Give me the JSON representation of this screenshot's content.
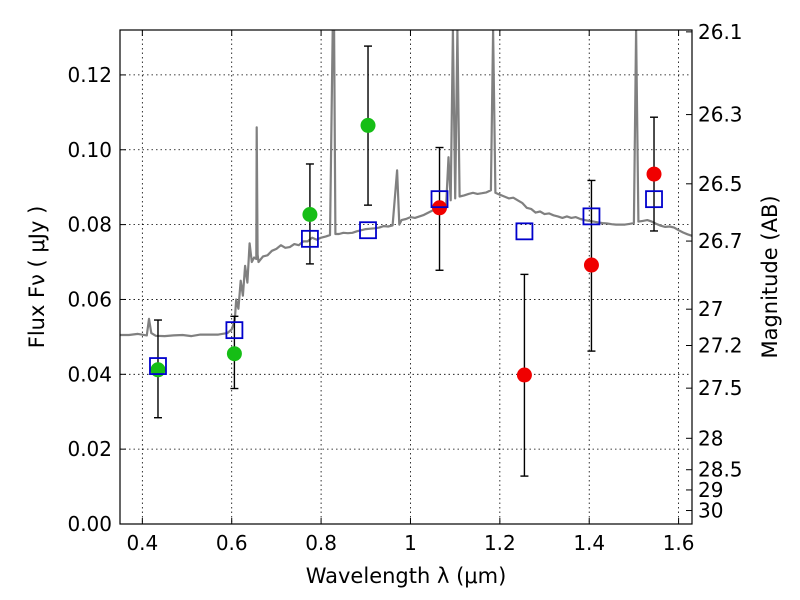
{
  "chart_data": {
    "type": "scatter",
    "xlabel": "Wavelength  λ (μm)",
    "ylabel_left": "Flux  Fν  ( μJy )",
    "ylabel_right": "Magnitude (AB)",
    "xlim": [
      0.35,
      1.63
    ],
    "ylim": [
      0.0,
      0.132
    ],
    "grid": true,
    "x_ticks": [
      0.4,
      0.6,
      0.8,
      1.0,
      1.2,
      1.4,
      1.6
    ],
    "x_tick_labels": [
      "0.4",
      "0.6",
      "0.8",
      "1",
      "1.2",
      "1.4",
      "1.6"
    ],
    "y_ticks": [
      0.0,
      0.02,
      0.04,
      0.06,
      0.08,
      0.1,
      0.12
    ],
    "y_tick_labels": [
      "0.00",
      "0.02",
      "0.04",
      "0.06",
      "0.08",
      "0.10",
      "0.12"
    ],
    "right_ticks": [
      {
        "label": "26.1",
        "flux": 0.1315
      },
      {
        "label": "26.3",
        "flux": 0.1094
      },
      {
        "label": "26.5",
        "flux": 0.0909
      },
      {
        "label": "26.7",
        "flux": 0.0756
      },
      {
        "label": "27",
        "flux": 0.0574
      },
      {
        "label": "27.2",
        "flux": 0.0477
      },
      {
        "label": "27.5",
        "flux": 0.0363
      },
      {
        "label": "28",
        "flux": 0.0229
      },
      {
        "label": "28.5",
        "flux": 0.0145
      },
      {
        "label": "29",
        "flux": 0.0091
      },
      {
        "label": "30",
        "flux": 0.0036
      }
    ],
    "series": [
      {
        "marker": "circle",
        "color": "#16be16",
        "points": [
          {
            "x": 0.435,
            "y": 0.0412,
            "err_low": 0.0284,
            "err_high": 0.0545
          },
          {
            "x": 0.606,
            "y": 0.0455,
            "err_low": 0.0362,
            "err_high": 0.0555
          },
          {
            "x": 0.775,
            "y": 0.0827,
            "err_low": 0.0695,
            "err_high": 0.0962
          },
          {
            "x": 0.905,
            "y": 0.1065,
            "err_low": 0.0852,
            "err_high": 0.1277
          }
        ]
      },
      {
        "marker": "circle",
        "color": "#f00000",
        "points": [
          {
            "x": 1.065,
            "y": 0.0845,
            "err_low": 0.0678,
            "err_high": 0.1006
          },
          {
            "x": 1.255,
            "y": 0.0398,
            "err_low": 0.0128,
            "err_high": 0.0667
          },
          {
            "x": 1.405,
            "y": 0.0692,
            "err_low": 0.0462,
            "err_high": 0.0918
          },
          {
            "x": 1.545,
            "y": 0.0935,
            "err_low": 0.0783,
            "err_high": 0.1087
          }
        ]
      },
      {
        "marker": "open-square",
        "color": "#0000cc",
        "points": [
          {
            "x": 0.435,
            "y": 0.0422
          },
          {
            "x": 0.606,
            "y": 0.0518
          },
          {
            "x": 0.775,
            "y": 0.0762
          },
          {
            "x": 0.905,
            "y": 0.0785
          },
          {
            "x": 1.065,
            "y": 0.0868
          },
          {
            "x": 1.255,
            "y": 0.0782
          },
          {
            "x": 1.405,
            "y": 0.0822
          },
          {
            "x": 1.545,
            "y": 0.0868
          }
        ]
      }
    ],
    "spectrum": {
      "color": "#808080",
      "points": [
        [
          0.35,
          0.0505
        ],
        [
          0.37,
          0.0505
        ],
        [
          0.39,
          0.0508
        ],
        [
          0.41,
          0.0504
        ],
        [
          0.415,
          0.0548
        ],
        [
          0.42,
          0.051
        ],
        [
          0.43,
          0.0503
        ],
        [
          0.45,
          0.0502
        ],
        [
          0.47,
          0.0504
        ],
        [
          0.49,
          0.0505
        ],
        [
          0.51,
          0.0502
        ],
        [
          0.53,
          0.0506
        ],
        [
          0.55,
          0.0506
        ],
        [
          0.57,
          0.0506
        ],
        [
          0.59,
          0.051
        ],
        [
          0.6,
          0.052
        ],
        [
          0.607,
          0.0545
        ],
        [
          0.61,
          0.06
        ],
        [
          0.615,
          0.0575
        ],
        [
          0.62,
          0.065
        ],
        [
          0.625,
          0.061
        ],
        [
          0.63,
          0.069
        ],
        [
          0.635,
          0.0645
        ],
        [
          0.64,
          0.075
        ],
        [
          0.645,
          0.07
        ],
        [
          0.65,
          0.0712
        ],
        [
          0.655,
          0.0708
        ],
        [
          0.656,
          0.106
        ],
        [
          0.658,
          0.072
        ],
        [
          0.66,
          0.07
        ],
        [
          0.67,
          0.0715
        ],
        [
          0.68,
          0.0718
        ],
        [
          0.69,
          0.073
        ],
        [
          0.7,
          0.0735
        ],
        [
          0.71,
          0.0745
        ],
        [
          0.72,
          0.0738
        ],
        [
          0.73,
          0.074
        ],
        [
          0.74,
          0.0748
        ],
        [
          0.75,
          0.0745
        ],
        [
          0.76,
          0.0755
        ],
        [
          0.77,
          0.0755
        ],
        [
          0.78,
          0.0765
        ],
        [
          0.79,
          0.076
        ],
        [
          0.8,
          0.0765
        ],
        [
          0.81,
          0.0768
        ],
        [
          0.82,
          0.0772
        ],
        [
          0.826,
          0.132
        ],
        [
          0.829,
          0.132
        ],
        [
          0.832,
          0.0775
        ],
        [
          0.84,
          0.0775
        ],
        [
          0.85,
          0.0778
        ],
        [
          0.86,
          0.0777
        ],
        [
          0.87,
          0.0778
        ],
        [
          0.88,
          0.0782
        ],
        [
          0.89,
          0.0785
        ],
        [
          0.9,
          0.0788
        ],
        [
          0.91,
          0.0789
        ],
        [
          0.92,
          0.079
        ],
        [
          0.93,
          0.0792
        ],
        [
          0.94,
          0.0796
        ],
        [
          0.95,
          0.0795
        ],
        [
          0.96,
          0.0798
        ],
        [
          0.97,
          0.0945
        ],
        [
          0.975,
          0.08
        ],
        [
          0.98,
          0.0812
        ],
        [
          0.99,
          0.0815
        ],
        [
          1.0,
          0.082
        ],
        [
          1.01,
          0.0818
        ],
        [
          1.02,
          0.0822
        ],
        [
          1.03,
          0.0826
        ],
        [
          1.04,
          0.0832
        ],
        [
          1.05,
          0.0838
        ],
        [
          1.06,
          0.0842
        ],
        [
          1.07,
          0.0848
        ],
        [
          1.08,
          0.0855
        ],
        [
          1.085,
          0.098
        ],
        [
          1.09,
          0.0865
        ],
        [
          1.095,
          0.132
        ],
        [
          1.1,
          0.087
        ],
        [
          1.105,
          0.132
        ],
        [
          1.11,
          0.0875
        ],
        [
          1.12,
          0.0878
        ],
        [
          1.13,
          0.0882
        ],
        [
          1.14,
          0.0885
        ],
        [
          1.15,
          0.0882
        ],
        [
          1.16,
          0.0884
        ],
        [
          1.17,
          0.0886
        ],
        [
          1.18,
          0.0892
        ],
        [
          1.185,
          0.132
        ],
        [
          1.19,
          0.0885
        ],
        [
          1.2,
          0.088
        ],
        [
          1.21,
          0.0875
        ],
        [
          1.22,
          0.087
        ],
        [
          1.23,
          0.0872
        ],
        [
          1.24,
          0.0865
        ],
        [
          1.25,
          0.0858
        ],
        [
          1.26,
          0.0845
        ],
        [
          1.27,
          0.0842
        ],
        [
          1.28,
          0.0832
        ],
        [
          1.29,
          0.0835
        ],
        [
          1.3,
          0.0828
        ],
        [
          1.31,
          0.083
        ],
        [
          1.32,
          0.0825
        ],
        [
          1.33,
          0.0822
        ],
        [
          1.34,
          0.0818
        ],
        [
          1.35,
          0.0822
        ],
        [
          1.36,
          0.0818
        ],
        [
          1.37,
          0.082
        ],
        [
          1.38,
          0.0815
        ],
        [
          1.39,
          0.0812
        ],
        [
          1.4,
          0.081
        ],
        [
          1.41,
          0.0808
        ],
        [
          1.42,
          0.0806
        ],
        [
          1.43,
          0.0804
        ],
        [
          1.44,
          0.0803
        ],
        [
          1.45,
          0.0801
        ],
        [
          1.46,
          0.08
        ],
        [
          1.47,
          0.08
        ],
        [
          1.48,
          0.08
        ],
        [
          1.49,
          0.0802
        ],
        [
          1.5,
          0.0804
        ],
        [
          1.505,
          0.132
        ],
        [
          1.51,
          0.0808
        ],
        [
          1.52,
          0.081
        ],
        [
          1.53,
          0.0812
        ],
        [
          1.54,
          0.0808
        ],
        [
          1.55,
          0.0802
        ],
        [
          1.56,
          0.0797
        ],
        [
          1.57,
          0.0794
        ],
        [
          1.58,
          0.0795
        ],
        [
          1.59,
          0.0792
        ],
        [
          1.6,
          0.0785
        ],
        [
          1.61,
          0.0779
        ],
        [
          1.62,
          0.0774
        ],
        [
          1.63,
          0.077
        ]
      ]
    }
  }
}
